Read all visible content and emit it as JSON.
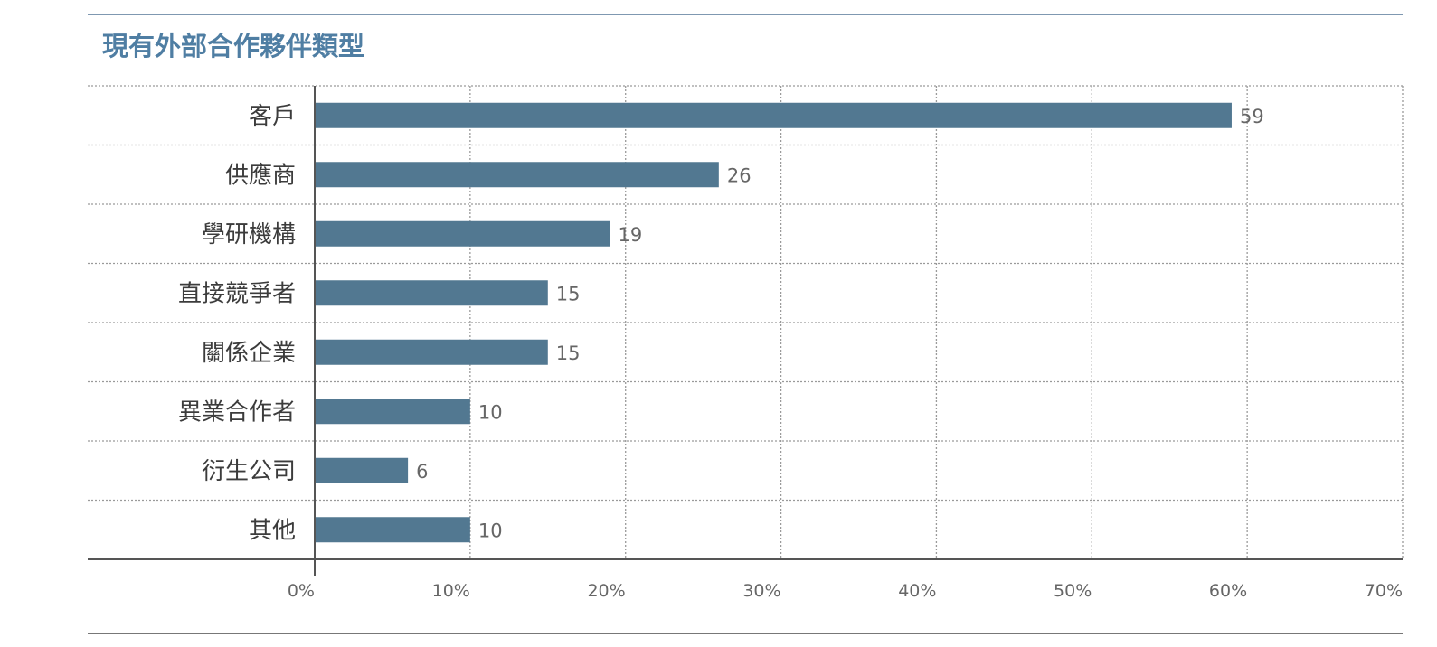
{
  "colors": {
    "bar": "#527891",
    "title": "#4f7ea3",
    "rule": "#7f98b1",
    "grid": "#9a9a9a",
    "axis": "#555555"
  },
  "chart_data": {
    "type": "bar",
    "orientation": "horizontal",
    "title": "現有外部合作夥伴類型",
    "categories": [
      "客戶",
      "供應商",
      "學研機構",
      "直接競爭者",
      "關係企業",
      "異業合作者",
      "衍生公司",
      "其他"
    ],
    "values": [
      59,
      26,
      19,
      15,
      15,
      10,
      6,
      10
    ],
    "value_labels": [
      "59",
      "26",
      "19",
      "15",
      "15",
      "10",
      "6",
      "10"
    ],
    "xlim": [
      0,
      70
    ],
    "xticks": [
      0,
      10,
      20,
      30,
      40,
      50,
      60,
      70
    ],
    "xtick_labels": [
      "0%",
      "10%",
      "20%",
      "30%",
      "40%",
      "50%",
      "60%",
      "70%"
    ],
    "grid": "dotted",
    "xlabel": "",
    "ylabel": ""
  }
}
